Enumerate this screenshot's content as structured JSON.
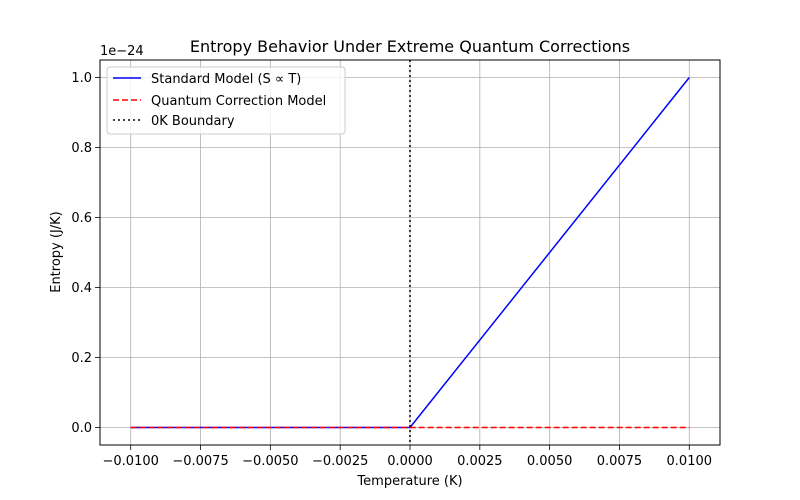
{
  "chart_data": {
    "type": "line",
    "title": "Entropy Behavior Under Extreme Quantum Corrections",
    "xlabel": "Temperature (K)",
    "ylabel": "Entropy (J/K)",
    "y_offset_text": "1e−24",
    "xlim": [
      -0.0111,
      0.0111
    ],
    "ylim": [
      -0.05,
      1.05
    ],
    "y_scale_factor": "1e-24",
    "grid": true,
    "legend_position": "top-left",
    "x_ticks": [
      {
        "value": -0.01,
        "label": "−0.0100"
      },
      {
        "value": -0.0075,
        "label": "−0.0075"
      },
      {
        "value": -0.005,
        "label": "−0.0050"
      },
      {
        "value": -0.0025,
        "label": "−0.0025"
      },
      {
        "value": 0,
        "label": "0.0000"
      },
      {
        "value": 0.0025,
        "label": "0.0025"
      },
      {
        "value": 0.005,
        "label": "0.0050"
      },
      {
        "value": 0.0075,
        "label": "0.0075"
      },
      {
        "value": 0.01,
        "label": "0.0100"
      }
    ],
    "y_ticks": [
      {
        "value": 0.0,
        "label": "0.0"
      },
      {
        "value": 0.2,
        "label": "0.2"
      },
      {
        "value": 0.4,
        "label": "0.4"
      },
      {
        "value": 0.6,
        "label": "0.6"
      },
      {
        "value": 0.8,
        "label": "0.8"
      },
      {
        "value": 1.0,
        "label": "1.0"
      }
    ],
    "series": [
      {
        "name": "Standard Model (S ∝ T)",
        "color": "#0000ff",
        "style": "solid",
        "x": [
          -0.01,
          0,
          0.01
        ],
        "y": [
          0,
          0,
          1.0
        ]
      },
      {
        "name": "Quantum Correction Model",
        "color": "#ff0000",
        "style": "dashed",
        "x": [
          -0.01,
          0.01
        ],
        "y": [
          0,
          0
        ]
      },
      {
        "name": "0K Boundary",
        "color": "#000000",
        "style": "dotted",
        "vertical_line_x": 0
      }
    ]
  }
}
